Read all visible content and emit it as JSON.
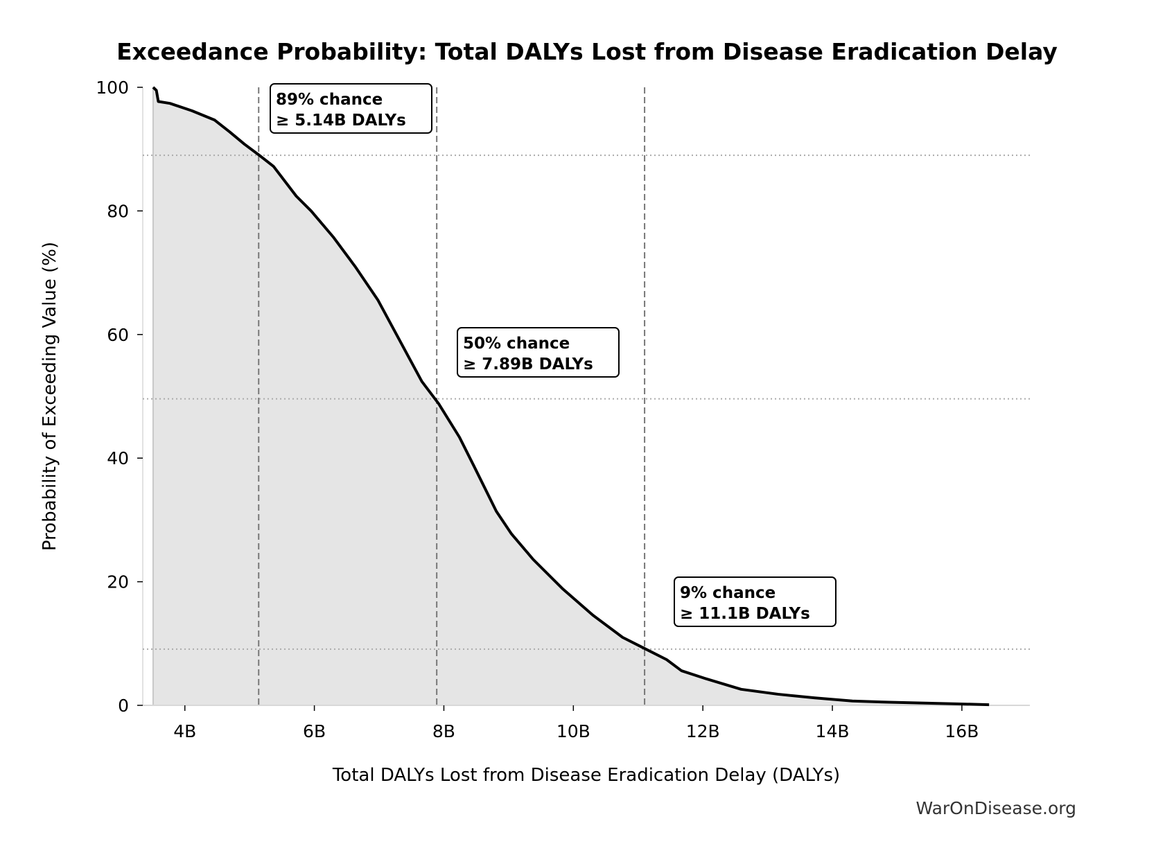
{
  "chart_data": {
    "type": "area",
    "title": "Exceedance Probability: Total DALYs Lost from Disease Eradication Delay",
    "xlabel": "Total DALYs Lost from Disease Eradication Delay (DALYs)",
    "ylabel": "Probability of Exceeding Value (%)",
    "xlim": [
      3.35,
      17.05
    ],
    "ylim": [
      0,
      100
    ],
    "x_unit": "billion DALYs",
    "x_ticks": [
      4,
      6,
      8,
      10,
      12,
      14,
      16
    ],
    "x_tick_labels": [
      "4B",
      "6B",
      "8B",
      "10B",
      "12B",
      "14B",
      "16B"
    ],
    "y_ticks": [
      0,
      20,
      40,
      60,
      80,
      100
    ],
    "y_tick_labels": [
      "0",
      "20",
      "40",
      "60",
      "80",
      "100"
    ],
    "grid": false,
    "line_color": "#000000",
    "fill_color": "#e5e5e5",
    "series": [
      {
        "x": [
          3.51,
          3.56,
          3.59,
          3.77,
          4.11,
          4.46,
          4.69,
          4.92,
          5.15,
          5.37,
          5.72,
          5.95,
          6.29,
          6.63,
          6.98,
          7.32,
          7.66,
          7.92,
          8.24,
          8.47,
          8.81,
          9.04,
          9.38,
          9.84,
          10.3,
          10.76,
          11.1,
          11.44,
          11.67,
          12.02,
          12.59,
          13.16,
          13.73,
          14.31,
          14.88,
          15.92,
          16.42
        ],
        "y": [
          100,
          99.5,
          97.7,
          97.4,
          96.2,
          94.7,
          92.8,
          90.8,
          89.0,
          87.2,
          82.4,
          80.0,
          75.8,
          71.0,
          65.6,
          59.0,
          52.4,
          48.8,
          43.4,
          38.6,
          31.4,
          27.8,
          23.6,
          18.8,
          14.6,
          11.0,
          9.2,
          7.4,
          5.6,
          4.4,
          2.6,
          1.8,
          1.2,
          0.7,
          0.5,
          0.24,
          0.1
        ]
      }
    ],
    "thresholds": [
      {
        "x": 5.14,
        "y": 89,
        "line1": "89% chance",
        "line2": "≥ 5.14B DALYs"
      },
      {
        "x": 7.89,
        "y": 49.6,
        "line1": "50% chance",
        "line2": "≥ 7.89B DALYs"
      },
      {
        "x": 11.1,
        "y": 9.1,
        "line1": "9% chance",
        "line2": "≥ 11.1B DALYs"
      }
    ],
    "watermark": "WarOnDisease.org"
  }
}
